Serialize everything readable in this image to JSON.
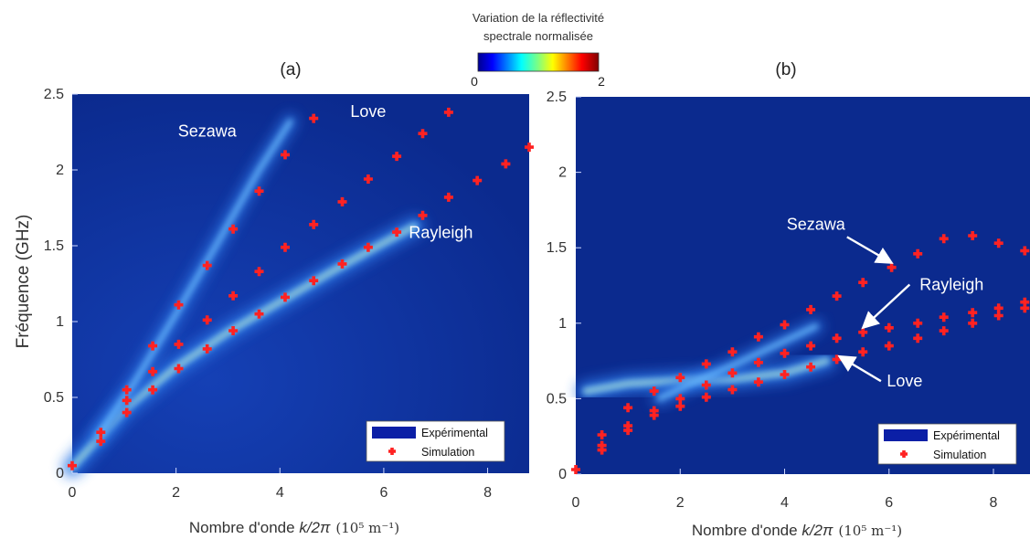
{
  "colorbar": {
    "title_line1": "Variation de la réflectivité",
    "title_line2": "spectrale normalisée",
    "min_label": "0",
    "max_label": "2",
    "range": [
      0,
      2
    ],
    "colormap": "jet"
  },
  "common": {
    "ylabel": "Fréquence (GHz)",
    "xlabel_prefix": "Nombre d'onde ",
    "xlabel_var": "k/2π",
    "xlabel_unit": "(10⁵ m⁻¹)",
    "legend": {
      "experimental": "Expérimental",
      "simulation": "Simulation",
      "placement": "bottom-right"
    },
    "colors": {
      "background": "#0b2a8e",
      "mode": "#6fc0ff",
      "simulation": "#ff2222"
    }
  },
  "chart_data": [
    {
      "type": "scatter",
      "panel_label": "(a)",
      "xlim": [
        0,
        8.8
      ],
      "ylim": [
        0,
        2.5
      ],
      "xticks": [
        "0",
        "2",
        "4",
        "6",
        "8"
      ],
      "yticks": [
        "0",
        "0.5",
        "1",
        "1.5",
        "2",
        "2.5"
      ],
      "annotations": [
        {
          "text": "Sezawa",
          "x": 2.6,
          "y": 2.22
        },
        {
          "text": "Love",
          "x": 5.7,
          "y": 2.35
        },
        {
          "text": "Rayleigh",
          "x": 7.1,
          "y": 1.55
        }
      ],
      "series": [
        {
          "name": "Simulation",
          "x": [
            0.0,
            0.55,
            1.05,
            1.55,
            2.05,
            2.6,
            3.1,
            3.6,
            4.1,
            4.65,
            5.2,
            5.7,
            6.25,
            6.75,
            7.25,
            7.8,
            8.35,
            8.8
          ],
          "y": [
            0.05,
            0.21,
            0.4,
            0.55,
            0.69,
            0.82,
            0.94,
            1.05,
            1.16,
            1.27,
            1.38,
            1.49,
            1.59,
            1.7,
            1.82,
            1.93,
            2.04,
            2.15
          ]
        },
        {
          "name": "Simulation",
          "x": [
            1.05,
            1.55,
            2.05,
            2.6,
            3.1,
            3.6,
            4.1,
            4.65,
            5.2,
            5.7,
            6.25,
            6.75,
            7.25
          ],
          "y": [
            0.48,
            0.67,
            0.85,
            1.01,
            1.17,
            1.33,
            1.49,
            1.64,
            1.79,
            1.94,
            2.09,
            2.24,
            2.38
          ]
        },
        {
          "name": "Simulation",
          "x": [
            0.55,
            1.05,
            1.55,
            2.05,
            2.6,
            3.1,
            3.6,
            4.1,
            4.65
          ],
          "y": [
            0.27,
            0.55,
            0.84,
            1.11,
            1.37,
            1.61,
            1.86,
            2.1,
            2.34
          ]
        }
      ],
      "experimental_modes": [
        {
          "x": [
            0.0,
            1.0,
            2.0,
            3.0,
            4.0,
            5.0,
            6.0,
            6.6
          ],
          "y": [
            0.04,
            0.42,
            0.7,
            0.93,
            1.13,
            1.33,
            1.52,
            1.63
          ]
        },
        {
          "x": [
            0.5,
            1.2,
            2.0,
            2.8,
            3.6,
            4.2
          ],
          "y": [
            0.25,
            0.6,
            1.05,
            1.52,
            2.0,
            2.32
          ]
        }
      ]
    },
    {
      "type": "scatter",
      "panel_label": "(b)",
      "xlim": [
        0,
        8.7
      ],
      "ylim": [
        0,
        2.5
      ],
      "xticks": [
        "0",
        "2",
        "4",
        "6",
        "8"
      ],
      "yticks": [
        "0",
        "0.5",
        "1",
        "1.5",
        "2",
        "2.5"
      ],
      "annotations": [
        {
          "text": "Sezawa",
          "x": 4.6,
          "y": 1.62,
          "arrow_to": [
            6.05,
            1.4
          ]
        },
        {
          "text": "Rayleigh",
          "x": 7.2,
          "y": 1.22,
          "arrow_to": [
            5.5,
            0.97
          ]
        },
        {
          "text": "Love",
          "x": 6.3,
          "y": 0.58,
          "arrow_to": [
            5.05,
            0.78
          ]
        }
      ],
      "series": [
        {
          "name": "Simulation",
          "x": [
            0.0,
            0.5,
            1.0,
            1.5,
            2.0,
            2.5,
            3.0,
            3.5,
            4.0,
            4.5,
            5.0,
            5.5,
            6.0,
            6.55,
            7.05,
            7.6,
            8.1,
            8.6
          ],
          "y": [
            0.03,
            0.16,
            0.29,
            0.39,
            0.45,
            0.51,
            0.56,
            0.61,
            0.66,
            0.71,
            0.76,
            0.81,
            0.85,
            0.9,
            0.95,
            1.0,
            1.05,
            1.1
          ]
        },
        {
          "name": "Simulation",
          "x": [
            0.5,
            1.0,
            1.5,
            2.0,
            2.5,
            3.0,
            3.5,
            4.0,
            4.5,
            5.0,
            5.5,
            6.0,
            6.55,
            7.05,
            7.6,
            8.1,
            8.6
          ],
          "y": [
            0.19,
            0.32,
            0.42,
            0.5,
            0.59,
            0.67,
            0.74,
            0.8,
            0.85,
            0.9,
            0.94,
            0.97,
            1.0,
            1.04,
            1.07,
            1.1,
            1.14
          ]
        },
        {
          "name": "Simulation",
          "x": [
            0.5,
            1.0,
            1.5,
            2.0,
            2.5,
            3.0,
            3.5,
            4.0,
            4.5,
            5.0,
            5.5,
            6.05,
            6.55,
            7.05,
            7.6,
            8.1,
            8.6
          ],
          "y": [
            0.26,
            0.44,
            0.55,
            0.64,
            0.73,
            0.81,
            0.91,
            0.99,
            1.09,
            1.18,
            1.27,
            1.37,
            1.46,
            1.56,
            1.58,
            1.53,
            1.48
          ]
        }
      ],
      "experimental_modes": [
        {
          "x": [
            0.2,
            1.0,
            2.0,
            3.0,
            4.0,
            4.8
          ],
          "y": [
            0.55,
            0.6,
            0.62,
            0.63,
            0.67,
            0.75
          ]
        },
        {
          "x": [
            1.6,
            2.2,
            3.0,
            3.8,
            4.6
          ],
          "y": [
            0.5,
            0.6,
            0.72,
            0.85,
            0.98
          ]
        }
      ]
    }
  ]
}
